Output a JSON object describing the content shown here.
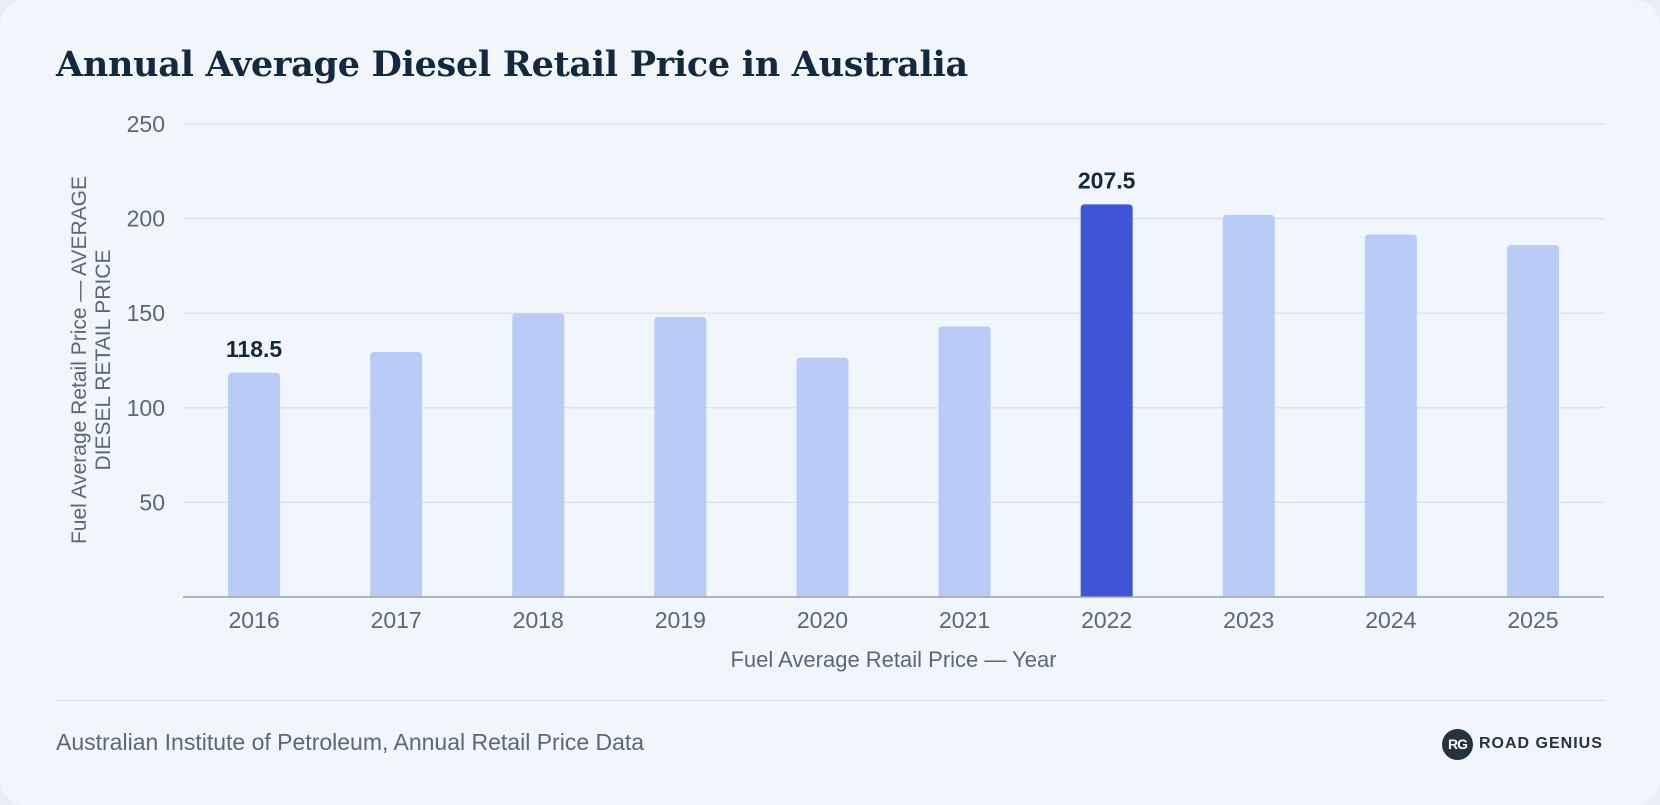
{
  "page": {
    "title": "Annual Average Diesel Retail Price in Australia",
    "source": "Australian Institute of Petroleum, Annual Retail Price Data",
    "logo": {
      "mark": "RG",
      "text": "ROAD GENIUS"
    }
  },
  "colors": {
    "bar": "#b9cbf7",
    "bar_highlight": "#3f54d6",
    "grid": "#d8dee6",
    "axis": "#9aa1aa",
    "tick_text": "#5d6672",
    "label_text": "#14293d",
    "title": "#14293d"
  },
  "chart_data": {
    "type": "bar",
    "title": "Annual Average Diesel Retail Price in Australia",
    "xlabel": "Fuel Average Retail Price — Year",
    "ylabel": "Fuel Average Retail Price — AVERAGE DIESEL RETAIL PRICE",
    "categories": [
      "2016",
      "2017",
      "2018",
      "2019",
      "2020",
      "2021",
      "2022",
      "2023",
      "2024",
      "2025"
    ],
    "values": [
      118.5,
      129.5,
      150,
      148,
      126.5,
      143,
      207.5,
      202,
      191.5,
      186
    ],
    "ylim": [
      0,
      250
    ],
    "yticks": [
      50,
      100,
      150,
      200,
      250
    ],
    "highlight": "2022",
    "data_labels": [
      {
        "category": "2016",
        "text": "118.5"
      },
      {
        "category": "2022",
        "text": "207.5"
      }
    ],
    "grid": true,
    "legend": "none"
  }
}
